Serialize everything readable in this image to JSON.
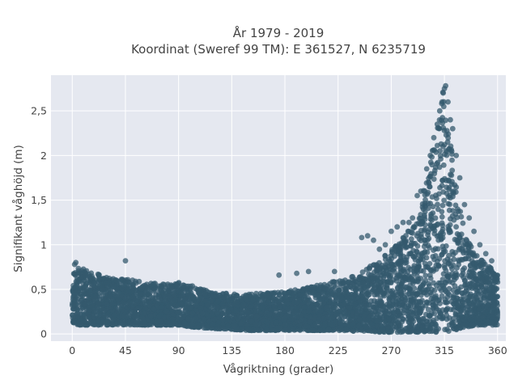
{
  "chart_data": {
    "type": "scatter",
    "title_line1": "År 1979 - 2019",
    "title_line2": "Koordinat (Sweref 99 TM): E 361527, N 6235719",
    "xlabel": "Vågriktning (grader)",
    "ylabel": "Signifikant våghöjd (m)",
    "xlim": [
      -18,
      367
    ],
    "ylim": [
      -0.08,
      2.9
    ],
    "x_ticks": [
      0,
      45,
      90,
      135,
      180,
      225,
      270,
      315,
      360
    ],
    "x_tick_labels": [
      "0",
      "45",
      "90",
      "135",
      "180",
      "225",
      "270",
      "315",
      "360"
    ],
    "y_ticks": [
      0,
      0.5,
      1,
      1.5,
      2,
      2.5
    ],
    "y_tick_labels": [
      "0",
      "0,5",
      "1",
      "1,5",
      "2",
      "2,5"
    ],
    "grid": true,
    "marker_color": "#34596e",
    "background_color": "#e5e8f0",
    "grid_color": "#ffffff",
    "envelope": {
      "x": [
        0,
        5,
        15,
        30,
        45,
        60,
        75,
        90,
        100,
        110,
        120,
        135,
        150,
        165,
        180,
        195,
        210,
        225,
        240,
        250,
        260,
        270,
        280,
        290,
        297,
        303,
        308,
        311,
        313,
        316,
        319,
        322,
        326,
        330,
        335,
        340,
        345,
        350,
        355,
        360
      ],
      "lower": [
        0.12,
        0.1,
        0.1,
        0.1,
        0.1,
        0.1,
        0.1,
        0.1,
        0.08,
        0.07,
        0.06,
        0.05,
        0.04,
        0.04,
        0.04,
        0.04,
        0.04,
        0.04,
        0.03,
        0.03,
        0.02,
        0.02,
        0.02,
        0.02,
        0.02,
        0.02,
        0.02,
        0.02,
        0.02,
        0.02,
        0.03,
        0.04,
        0.05,
        0.06,
        0.08,
        0.09,
        0.1,
        0.1,
        0.1,
        0.1
      ],
      "upper": [
        0.68,
        0.75,
        0.7,
        0.64,
        0.62,
        0.58,
        0.56,
        0.58,
        0.55,
        0.5,
        0.47,
        0.45,
        0.45,
        0.46,
        0.48,
        0.52,
        0.55,
        0.6,
        0.66,
        0.75,
        0.82,
        0.95,
        1.08,
        1.25,
        1.6,
        1.95,
        2.3,
        2.55,
        2.8,
        2.6,
        2.3,
        2.0,
        1.6,
        1.3,
        1.05,
        0.92,
        0.85,
        0.78,
        0.74,
        0.68
      ]
    },
    "outliers": {
      "x": [
        45,
        2,
        3,
        245,
        250,
        255,
        260,
        265,
        270,
        275,
        280,
        285,
        288,
        292,
        295,
        300,
        303,
        306,
        309,
        311,
        313,
        314,
        315,
        316,
        318,
        320,
        322,
        325,
        328,
        332,
        336,
        340,
        345,
        350,
        355,
        190,
        200,
        175,
        222
      ],
      "y": [
        0.82,
        0.78,
        0.8,
        1.08,
        1.1,
        1.05,
        0.95,
        1.0,
        1.15,
        1.2,
        1.25,
        1.25,
        1.3,
        1.55,
        1.6,
        1.85,
        2.0,
        2.2,
        2.35,
        2.5,
        2.6,
        2.7,
        2.75,
        2.78,
        2.6,
        2.4,
        2.3,
        2.0,
        1.75,
        1.45,
        1.3,
        1.15,
        1.0,
        0.9,
        0.82,
        0.68,
        0.7,
        0.66,
        0.7
      ]
    }
  }
}
